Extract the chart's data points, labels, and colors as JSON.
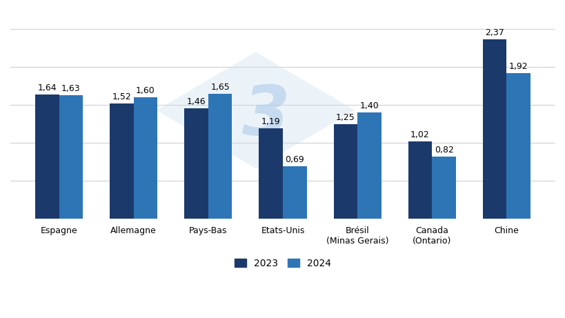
{
  "categories": [
    "Espagne",
    "Allemagne",
    "Pays-Bas",
    "Etats-Unis",
    "Brésil\n(Minas Gerais)",
    "Canada\n(Ontario)",
    "Chine"
  ],
  "values_2023": [
    1.64,
    1.52,
    1.46,
    1.19,
    1.25,
    1.02,
    2.37
  ],
  "values_2024": [
    1.63,
    1.6,
    1.65,
    0.69,
    1.4,
    0.82,
    1.92
  ],
  "labels_2023": [
    "1,64",
    "1,52",
    "1,46",
    "1,19",
    "1,25",
    "1,02",
    "2,37"
  ],
  "labels_2024": [
    "1,63",
    "1,60",
    "1,65",
    "0,69",
    "1,40",
    "0,82",
    "1,92"
  ],
  "color_2023": "#1b3a6b",
  "color_2024": "#2e75b6",
  "background_color": "#ffffff",
  "ylim": [
    0,
    2.75
  ],
  "bar_width": 0.32,
  "legend_labels": [
    "2023",
    "2024"
  ],
  "yticks": [
    0.0,
    0.5,
    1.0,
    1.5,
    2.0,
    2.5
  ],
  "grid_color": "#d0d0d0",
  "label_fontsize": 9,
  "tick_fontsize": 9,
  "legend_fontsize": 10
}
